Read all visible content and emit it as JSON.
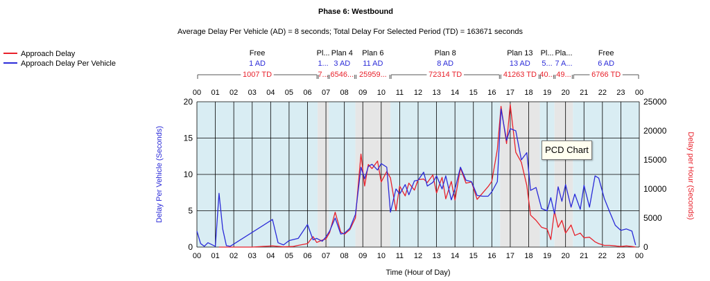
{
  "chart_data": {
    "type": "line",
    "title": "Phase 6: Westbound",
    "subtitle": "Average Delay Per Vehicle (AD) = 8 seconds; Total Delay For Selected Period (TD) = 163671 seconds",
    "xlabel": "Time (Hour of Day)",
    "ylabel": "Delay Per Vehicle (Seconds)",
    "y2label": "Delay per Hour (Seconds)",
    "xlim": [
      0,
      24
    ],
    "ylim": [
      0,
      20
    ],
    "y2lim": [
      0,
      25000
    ],
    "x_ticks": [
      "00",
      "01",
      "02",
      "03",
      "04",
      "05",
      "06",
      "07",
      "08",
      "09",
      "10",
      "11",
      "12",
      "13",
      "14",
      "15",
      "16",
      "17",
      "18",
      "19",
      "20",
      "21",
      "22",
      "23",
      "00"
    ],
    "y_ticks": [
      "0",
      "5",
      "10",
      "15",
      "20"
    ],
    "y2_ticks": [
      "0",
      "5000",
      "10000",
      "15000",
      "20000",
      "25000"
    ],
    "grid": true,
    "legend_position": "left",
    "colors": {
      "approach_delay": "#e8202a",
      "approach_delay_per_vehicle": "#2a2ad8",
      "plan_band_a": "#d9edf3",
      "plan_band_b": "#e6e6e6",
      "gridline": "#000000"
    },
    "series": [
      {
        "name": "Approach Delay",
        "axis": "y2",
        "color": "#e8202a",
        "x": [
          1.2,
          1.8,
          3.0,
          4.1,
          4.7,
          5.2,
          5.5,
          6.0,
          6.3,
          6.5,
          6.8,
          7.0,
          7.2,
          7.5,
          7.8,
          8.0,
          8.3,
          8.6,
          8.9,
          9.1,
          9.3,
          9.5,
          9.8,
          10.0,
          10.3,
          10.5,
          10.8,
          11.0,
          11.3,
          11.5,
          11.8,
          12.0,
          12.3,
          12.5,
          12.8,
          13.0,
          13.3,
          13.5,
          13.8,
          14.0,
          14.3,
          14.6,
          14.9,
          15.2,
          15.5,
          15.8,
          16.0,
          16.3,
          16.5,
          16.8,
          17.0,
          17.3,
          17.6,
          17.9,
          18.1,
          18.4,
          18.7,
          19.0,
          19.2,
          19.4,
          19.6,
          19.8,
          20.0,
          20.3,
          20.5,
          20.8,
          21.0,
          21.3,
          21.6,
          21.8,
          22.1,
          22.4,
          22.7,
          23.0,
          23.3,
          23.6,
          23.8
        ],
        "values": [
          0,
          0,
          0,
          200,
          50,
          100,
          300,
          600,
          1800,
          800,
          1200,
          1400,
          2500,
          6000,
          2600,
          2200,
          3000,
          5000,
          16000,
          10500,
          14200,
          13500,
          14800,
          11200,
          13000,
          11900,
          6300,
          10500,
          8800,
          11000,
          9800,
          11600,
          11700,
          11100,
          12400,
          9300,
          12000,
          8300,
          11300,
          8100,
          13600,
          11000,
          11200,
          8200,
          9300,
          10400,
          11300,
          16800,
          24200,
          17800,
          24500,
          16300,
          14600,
          10600,
          5500,
          4600,
          3400,
          3100,
          1300,
          6200,
          3400,
          4600,
          2400,
          3800,
          2000,
          2400,
          1600,
          1700,
          900,
          600,
          300,
          300,
          200,
          100,
          200,
          100,
          0
        ]
      },
      {
        "name": "Approach Delay Per Vehicle",
        "axis": "y",
        "color": "#2a2ad8",
        "x": [
          0.0,
          0.2,
          0.4,
          0.6,
          1.0,
          1.2,
          1.4,
          1.6,
          1.8,
          4.1,
          4.4,
          4.7,
          5.0,
          5.5,
          6.0,
          6.3,
          6.5,
          6.8,
          7.0,
          7.2,
          7.5,
          7.8,
          8.0,
          8.3,
          8.6,
          8.9,
          9.1,
          9.3,
          9.5,
          9.8,
          10.0,
          10.3,
          10.5,
          10.8,
          11.0,
          11.3,
          11.5,
          11.8,
          12.0,
          12.3,
          12.5,
          12.8,
          13.0,
          13.3,
          13.5,
          13.8,
          14.0,
          14.3,
          14.6,
          14.9,
          15.2,
          15.5,
          15.8,
          16.0,
          16.3,
          16.5,
          16.8,
          17.0,
          17.3,
          17.6,
          17.9,
          18.1,
          18.4,
          18.7,
          19.0,
          19.2,
          19.4,
          19.6,
          19.8,
          20.0,
          20.3,
          20.5,
          20.8,
          21.0,
          21.3,
          21.6,
          21.8,
          22.1,
          22.4,
          22.7,
          23.0,
          23.3,
          23.6,
          23.8
        ],
        "values": [
          2.2,
          0.5,
          0.1,
          0.6,
          0.1,
          7.4,
          2.5,
          0.2,
          0.1,
          3.8,
          0.6,
          0.3,
          0.9,
          1.2,
          3.1,
          1.0,
          1.2,
          0.8,
          1.4,
          2.2,
          4.0,
          1.8,
          1.9,
          2.6,
          4.5,
          11.0,
          9.4,
          11.1,
          11.4,
          10.6,
          11.5,
          11.0,
          4.8,
          8.0,
          7.3,
          8.6,
          7.2,
          9.1,
          9.2,
          10.3,
          8.4,
          8.9,
          9.8,
          8.0,
          9.8,
          6.5,
          8.0,
          11.0,
          9.2,
          9.0,
          7.1,
          7.0,
          7.0,
          7.6,
          9.0,
          19.0,
          14.7,
          16.3,
          16.0,
          12.0,
          13.0,
          7.8,
          8.2,
          5.3,
          5.0,
          6.8,
          4.6,
          8.3,
          6.3,
          8.6,
          5.5,
          7.3,
          5.2,
          8.5,
          5.5,
          9.8,
          9.5,
          6.7,
          4.8,
          3.0,
          2.3,
          2.5,
          2.2,
          0.3
        ]
      }
    ],
    "plans": [
      {
        "name": "Free",
        "ad": "1 AD",
        "td": "1007 TD",
        "start": 0.0,
        "end": 6.55
      },
      {
        "name": "Pl...",
        "ad": "1...",
        "td": "7...",
        "start": 6.55,
        "end": 7.15
      },
      {
        "name": "Plan 4",
        "ad": "3 AD",
        "td": "6546...",
        "start": 7.15,
        "end": 8.6
      },
      {
        "name": "Plan 6",
        "ad": "11 AD",
        "td": "25959...",
        "start": 8.6,
        "end": 10.5
      },
      {
        "name": "Plan 8",
        "ad": "8 AD",
        "td": "72314 TD",
        "start": 10.5,
        "end": 16.45
      },
      {
        "name": "Plan 13",
        "ad": "13 AD",
        "td": "41263 TD",
        "start": 16.45,
        "end": 18.6
      },
      {
        "name": "Pl...",
        "ad": "5...",
        "td": "40...",
        "start": 18.6,
        "end": 19.4
      },
      {
        "name": "Pla...",
        "ad": "7 A...",
        "td": "49...",
        "start": 19.4,
        "end": 20.4
      },
      {
        "name": "Free",
        "ad": "6 AD",
        "td": "6766 TD",
        "start": 20.4,
        "end": 24.0
      }
    ],
    "tooltip": "PCD Chart"
  }
}
